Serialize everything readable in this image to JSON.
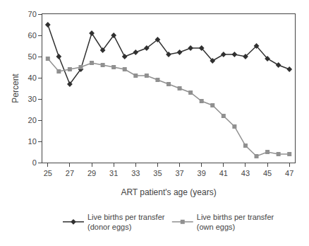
{
  "chart_data": {
    "type": "line",
    "x": [
      25,
      26,
      27,
      28,
      29,
      30,
      31,
      32,
      33,
      34,
      35,
      36,
      37,
      38,
      39,
      40,
      41,
      42,
      43,
      44,
      45,
      46,
      47
    ],
    "series": [
      {
        "name": "Live births per transfer\n(donor eggs)",
        "color": "#303030",
        "marker": "diamond",
        "values": [
          65,
          50,
          37,
          44,
          61,
          53,
          60,
          50,
          52,
          54,
          58,
          51,
          52,
          54,
          54,
          48,
          51,
          51,
          50,
          55,
          49,
          46,
          44
        ]
      },
      {
        "name": "Live births per transfer\n(own eggs)",
        "color": "#909090",
        "marker": "square",
        "values": [
          49,
          43,
          44,
          45,
          47,
          46,
          45,
          44,
          41,
          41,
          39,
          37,
          35,
          33,
          29,
          27,
          22,
          17,
          8,
          3,
          5,
          4,
          4
        ]
      }
    ],
    "xlabel": "ART patient's age (years)",
    "ylabel": "Percent",
    "xlim": [
      24.5,
      47.5
    ],
    "xticks": [
      25,
      27,
      29,
      31,
      33,
      35,
      37,
      39,
      41,
      43,
      45,
      47
    ],
    "ylim": [
      0,
      70
    ],
    "yticks": [
      0,
      10,
      20,
      30,
      40,
      50,
      60,
      70
    ],
    "grid": false,
    "legend": "bottom"
  }
}
